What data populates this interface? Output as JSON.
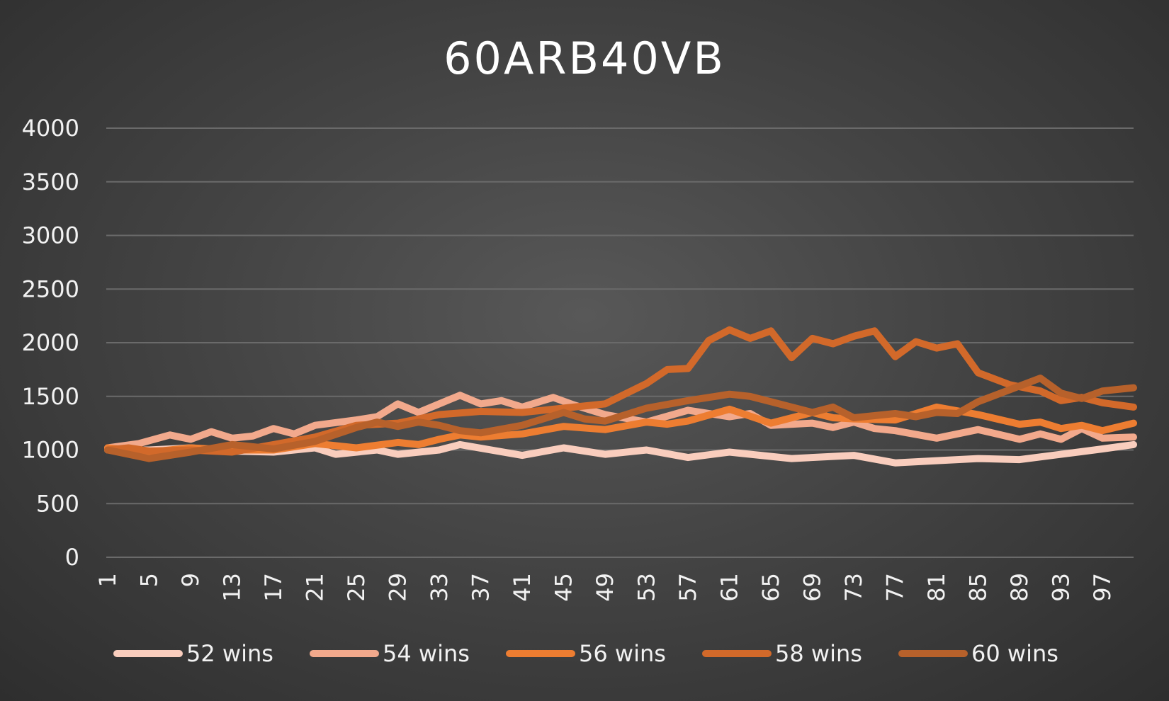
{
  "chart_data": {
    "type": "line",
    "title": "60ARB40VB",
    "xlabel": "",
    "ylabel": "",
    "x_range": [
      1,
      100
    ],
    "x_tick_labels": [
      "1",
      "5",
      "9",
      "13",
      "17",
      "21",
      "25",
      "29",
      "33",
      "37",
      "41",
      "45",
      "49",
      "53",
      "57",
      "61",
      "65",
      "69",
      "73",
      "77",
      "81",
      "85",
      "89",
      "93",
      "97"
    ],
    "ylim": [
      0,
      4000
    ],
    "y_ticks": [
      0,
      500,
      1000,
      1500,
      2000,
      2500,
      3000,
      3500,
      4000
    ],
    "grid": true,
    "legend_position": "bottom",
    "series": [
      {
        "name": "52 wins",
        "color": "#f9cdbd",
        "points": [
          [
            1,
            1000
          ],
          [
            5,
            1000
          ],
          [
            9,
            1020
          ],
          [
            13,
            990
          ],
          [
            17,
            980
          ],
          [
            21,
            1020
          ],
          [
            23,
            960
          ],
          [
            27,
            1000
          ],
          [
            29,
            960
          ],
          [
            33,
            1000
          ],
          [
            35,
            1050
          ],
          [
            41,
            950
          ],
          [
            45,
            1020
          ],
          [
            49,
            960
          ],
          [
            53,
            1000
          ],
          [
            57,
            930
          ],
          [
            61,
            980
          ],
          [
            67,
            920
          ],
          [
            73,
            950
          ],
          [
            77,
            880
          ],
          [
            81,
            900
          ],
          [
            85,
            920
          ],
          [
            89,
            910
          ],
          [
            93,
            960
          ],
          [
            97,
            1010
          ],
          [
            100,
            1050
          ]
        ]
      },
      {
        "name": "54 wins",
        "color": "#f2a98c",
        "points": [
          [
            1,
            1020
          ],
          [
            4,
            1060
          ],
          [
            7,
            1140
          ],
          [
            9,
            1100
          ],
          [
            11,
            1170
          ],
          [
            13,
            1110
          ],
          [
            15,
            1130
          ],
          [
            17,
            1200
          ],
          [
            19,
            1150
          ],
          [
            21,
            1230
          ],
          [
            25,
            1280
          ],
          [
            27,
            1310
          ],
          [
            29,
            1430
          ],
          [
            31,
            1350
          ],
          [
            35,
            1510
          ],
          [
            37,
            1430
          ],
          [
            39,
            1460
          ],
          [
            41,
            1400
          ],
          [
            44,
            1490
          ],
          [
            46,
            1420
          ],
          [
            49,
            1330
          ],
          [
            53,
            1260
          ],
          [
            57,
            1370
          ],
          [
            61,
            1310
          ],
          [
            63,
            1340
          ],
          [
            65,
            1230
          ],
          [
            69,
            1250
          ],
          [
            71,
            1210
          ],
          [
            73,
            1260
          ],
          [
            75,
            1200
          ],
          [
            77,
            1180
          ],
          [
            81,
            1110
          ],
          [
            85,
            1190
          ],
          [
            89,
            1100
          ],
          [
            91,
            1150
          ],
          [
            93,
            1100
          ],
          [
            95,
            1200
          ],
          [
            97,
            1110
          ],
          [
            100,
            1120
          ]
        ]
      },
      {
        "name": "56 wins",
        "color": "#ed7d31",
        "points": [
          [
            1,
            1020
          ],
          [
            5,
            980
          ],
          [
            9,
            1020
          ],
          [
            13,
            1000
          ],
          [
            17,
            1000
          ],
          [
            21,
            1060
          ],
          [
            25,
            1020
          ],
          [
            29,
            1070
          ],
          [
            31,
            1050
          ],
          [
            33,
            1100
          ],
          [
            35,
            1140
          ],
          [
            37,
            1120
          ],
          [
            41,
            1150
          ],
          [
            45,
            1220
          ],
          [
            49,
            1190
          ],
          [
            53,
            1260
          ],
          [
            55,
            1240
          ],
          [
            57,
            1270
          ],
          [
            61,
            1380
          ],
          [
            65,
            1250
          ],
          [
            69,
            1350
          ],
          [
            71,
            1300
          ],
          [
            73,
            1290
          ],
          [
            77,
            1280
          ],
          [
            81,
            1400
          ],
          [
            85,
            1330
          ],
          [
            89,
            1240
          ],
          [
            91,
            1260
          ],
          [
            93,
            1200
          ],
          [
            95,
            1230
          ],
          [
            97,
            1180
          ],
          [
            100,
            1250
          ]
        ]
      },
      {
        "name": "58 wins",
        "color": "#d2692a",
        "points": [
          [
            1,
            1000
          ],
          [
            3,
            1020
          ],
          [
            5,
            990
          ],
          [
            9,
            1000
          ],
          [
            13,
            980
          ],
          [
            17,
            1050
          ],
          [
            21,
            1120
          ],
          [
            25,
            1230
          ],
          [
            29,
            1250
          ],
          [
            33,
            1330
          ],
          [
            37,
            1360
          ],
          [
            41,
            1350
          ],
          [
            45,
            1390
          ],
          [
            49,
            1430
          ],
          [
            53,
            1620
          ],
          [
            55,
            1750
          ],
          [
            57,
            1760
          ],
          [
            59,
            2020
          ],
          [
            61,
            2120
          ],
          [
            63,
            2040
          ],
          [
            65,
            2110
          ],
          [
            67,
            1860
          ],
          [
            69,
            2040
          ],
          [
            71,
            1990
          ],
          [
            73,
            2060
          ],
          [
            75,
            2110
          ],
          [
            77,
            1870
          ],
          [
            79,
            2010
          ],
          [
            81,
            1950
          ],
          [
            83,
            1990
          ],
          [
            85,
            1720
          ],
          [
            88,
            1610
          ],
          [
            91,
            1550
          ],
          [
            93,
            1460
          ],
          [
            95,
            1490
          ],
          [
            97,
            1440
          ],
          [
            100,
            1400
          ]
        ]
      },
      {
        "name": "60 wins",
        "color": "#b7612b",
        "points": [
          [
            1,
            1000
          ],
          [
            5,
            920
          ],
          [
            9,
            980
          ],
          [
            13,
            1050
          ],
          [
            17,
            1010
          ],
          [
            21,
            1080
          ],
          [
            25,
            1210
          ],
          [
            27,
            1260
          ],
          [
            29,
            1220
          ],
          [
            31,
            1260
          ],
          [
            33,
            1230
          ],
          [
            35,
            1180
          ],
          [
            37,
            1160
          ],
          [
            41,
            1230
          ],
          [
            45,
            1350
          ],
          [
            47,
            1290
          ],
          [
            49,
            1270
          ],
          [
            53,
            1390
          ],
          [
            57,
            1460
          ],
          [
            61,
            1520
          ],
          [
            63,
            1500
          ],
          [
            65,
            1450
          ],
          [
            69,
            1350
          ],
          [
            71,
            1400
          ],
          [
            73,
            1300
          ],
          [
            77,
            1340
          ],
          [
            79,
            1310
          ],
          [
            81,
            1350
          ],
          [
            83,
            1340
          ],
          [
            85,
            1450
          ],
          [
            88,
            1560
          ],
          [
            91,
            1670
          ],
          [
            93,
            1530
          ],
          [
            95,
            1480
          ],
          [
            97,
            1550
          ],
          [
            100,
            1580
          ]
        ]
      }
    ]
  }
}
